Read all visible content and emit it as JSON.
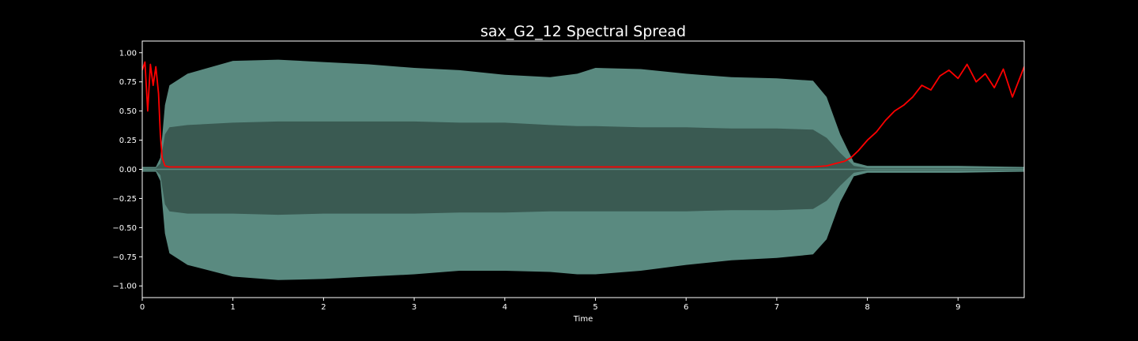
{
  "chart_data": {
    "type": "line",
    "title": "sax_G2_12 Spectral Spread",
    "xlabel": "Time",
    "ylabel": "",
    "xlim": [
      0,
      9.73
    ],
    "ylim": [
      -1.1,
      1.1
    ],
    "xticks": [
      0,
      1,
      2,
      3,
      4,
      5,
      6,
      7,
      8,
      9
    ],
    "yticks": [
      -1.0,
      -0.75,
      -0.5,
      -0.25,
      0.0,
      0.25,
      0.5,
      0.75,
      1.0
    ],
    "ytick_labels": [
      "−1.00",
      "−0.75",
      "−0.50",
      "−0.25",
      "0.00",
      "0.25",
      "0.50",
      "0.75",
      "1.00"
    ],
    "grid": false,
    "series": [
      {
        "kind": "waveform-envelope",
        "color": "#5a8a80",
        "inner_color": "#3a5a52",
        "x": [
          0,
          0.15,
          0.2,
          0.25,
          0.3,
          0.5,
          1.0,
          1.5,
          2.0,
          2.5,
          3.0,
          3.5,
          4.0,
          4.5,
          4.8,
          5.0,
          5.5,
          6.0,
          6.5,
          7.0,
          7.4,
          7.55,
          7.7,
          7.85,
          8.0,
          9.0,
          9.73
        ],
        "outer_upper": [
          0.02,
          0.02,
          0.1,
          0.55,
          0.72,
          0.82,
          0.93,
          0.94,
          0.92,
          0.9,
          0.87,
          0.85,
          0.81,
          0.79,
          0.82,
          0.87,
          0.86,
          0.82,
          0.79,
          0.78,
          0.76,
          0.62,
          0.3,
          0.06,
          0.03,
          0.03,
          0.02
        ],
        "inner_upper": [
          0.01,
          0.01,
          0.05,
          0.3,
          0.36,
          0.38,
          0.4,
          0.41,
          0.41,
          0.41,
          0.41,
          0.4,
          0.4,
          0.38,
          0.37,
          0.37,
          0.36,
          0.36,
          0.35,
          0.35,
          0.34,
          0.27,
          0.14,
          0.03,
          0.01,
          0.01,
          0.01
        ],
        "outer_lower": [
          -0.02,
          -0.02,
          -0.1,
          -0.55,
          -0.72,
          -0.82,
          -0.92,
          -0.95,
          -0.94,
          -0.92,
          -0.9,
          -0.87,
          -0.87,
          -0.88,
          -0.9,
          -0.9,
          -0.87,
          -0.82,
          -0.78,
          -0.76,
          -0.73,
          -0.6,
          -0.28,
          -0.06,
          -0.03,
          -0.03,
          -0.02
        ],
        "inner_lower": [
          -0.01,
          -0.01,
          -0.05,
          -0.3,
          -0.36,
          -0.38,
          -0.38,
          -0.39,
          -0.38,
          -0.38,
          -0.38,
          -0.37,
          -0.37,
          -0.36,
          -0.36,
          -0.36,
          -0.36,
          -0.36,
          -0.35,
          -0.35,
          -0.34,
          -0.27,
          -0.14,
          -0.03,
          -0.01,
          -0.01,
          -0.01
        ]
      },
      {
        "kind": "spectral-spread",
        "color": "#ff0000",
        "x": [
          0.0,
          0.03,
          0.06,
          0.09,
          0.12,
          0.15,
          0.18,
          0.2,
          0.22,
          0.25,
          0.3,
          0.5,
          1.0,
          1.5,
          2.0,
          2.5,
          3.0,
          3.5,
          4.0,
          4.5,
          5.0,
          5.5,
          6.0,
          6.5,
          7.0,
          7.4,
          7.55,
          7.65,
          7.75,
          7.82,
          7.9,
          8.0,
          8.1,
          8.2,
          8.3,
          8.4,
          8.5,
          8.6,
          8.7,
          8.8,
          8.9,
          9.0,
          9.1,
          9.2,
          9.3,
          9.4,
          9.5,
          9.6,
          9.73
        ],
        "y": [
          0.85,
          0.92,
          0.5,
          0.9,
          0.72,
          0.88,
          0.65,
          0.3,
          0.1,
          0.03,
          0.02,
          0.02,
          0.02,
          0.02,
          0.02,
          0.02,
          0.02,
          0.02,
          0.02,
          0.02,
          0.02,
          0.02,
          0.02,
          0.02,
          0.02,
          0.02,
          0.03,
          0.05,
          0.07,
          0.1,
          0.16,
          0.25,
          0.32,
          0.42,
          0.5,
          0.55,
          0.62,
          0.72,
          0.68,
          0.8,
          0.85,
          0.78,
          0.9,
          0.75,
          0.82,
          0.7,
          0.86,
          0.62,
          0.88
        ]
      }
    ]
  }
}
